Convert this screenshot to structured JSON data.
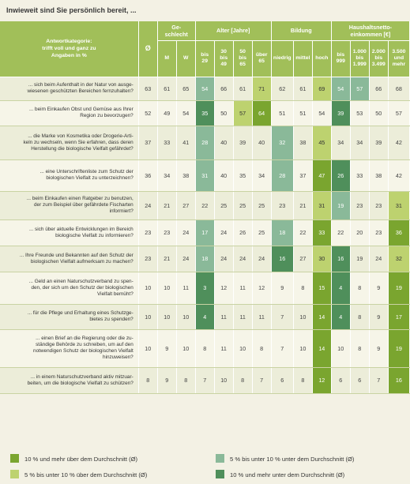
{
  "title": "Inwieweit sind Sie persönlich bereit, ...",
  "header": {
    "antwortkategorie": "Antwortkategorie:\ntrifft voll und ganz zu\nAngaben in %",
    "avg": "Ø",
    "geschlecht": "Ge-\nschlecht",
    "alter": "Alter [Jahre]",
    "bildung": "Bildung",
    "einkommen": "Haushaltsnetto-\neinkommen [€]",
    "cols": [
      "M",
      "W",
      "bis\n29",
      "30\nbis\n49",
      "50\nbis\n65",
      "über\n65",
      "niedrig",
      "mittel",
      "hoch",
      "bis\n999",
      "1.000\nbis\n1.999",
      "2.000\nbis\n3.499",
      "3.500\nund\nmehr"
    ]
  },
  "rows": [
    {
      "q": "... sich beim Aufenthalt in der Natur von ausge-\nwiesenen geschützten Bereichen fernzuhalten?",
      "v": [
        "63",
        "61",
        "65",
        "54",
        "66",
        "61",
        "71",
        "62",
        "61",
        "69",
        "54",
        "57",
        "66",
        "68"
      ],
      "s": [
        "",
        "",
        "",
        "s3",
        "",
        "",
        "s2",
        "",
        "",
        "s2",
        "s3",
        "s3",
        "",
        ""
      ]
    },
    {
      "q": "... beim Einkaufen Obst und Gemüse aus Ihrer\nRegion zu bevorzugen?",
      "v": [
        "52",
        "49",
        "54",
        "35",
        "50",
        "57",
        "64",
        "51",
        "51",
        "54",
        "39",
        "53",
        "50",
        "57"
      ],
      "s": [
        "",
        "",
        "",
        "s4",
        "",
        "s2",
        "s1",
        "",
        "",
        "",
        "s4",
        "",
        "",
        ""
      ]
    },
    {
      "q": "... die Marke von Kosmetika oder Drogerie-Arti-\nkeln zu wechseln, wenn Sie erfahren, dass deren\nHerstellung die biologische Vielfalt gefährdet?",
      "v": [
        "37",
        "33",
        "41",
        "28",
        "40",
        "39",
        "40",
        "32",
        "38",
        "45",
        "34",
        "34",
        "39",
        "42"
      ],
      "s": [
        "",
        "",
        "",
        "s3",
        "",
        "",
        "",
        "s3",
        "",
        "s2",
        "",
        "",
        "",
        ""
      ]
    },
    {
      "q": "... eine Unterschriftenliste zum Schutz der\nbiologischen Vielfalt zu unterzeichnen?",
      "v": [
        "36",
        "34",
        "38",
        "31",
        "40",
        "35",
        "34",
        "28",
        "37",
        "47",
        "26",
        "33",
        "38",
        "42"
      ],
      "s": [
        "",
        "",
        "",
        "s3",
        "",
        "",
        "",
        "s3",
        "",
        "s1",
        "s4",
        "",
        "",
        ""
      ]
    },
    {
      "q": "... beim Einkaufen einen Ratgeber zu benutzen,\nder zum Beispiel über gefährdete Fischarten\ninformiert?",
      "v": [
        "24",
        "21",
        "27",
        "22",
        "25",
        "25",
        "25",
        "23",
        "21",
        "31",
        "19",
        "23",
        "23",
        "31"
      ],
      "s": [
        "",
        "",
        "",
        "",
        "",
        "",
        "",
        "",
        "",
        "s2",
        "s3",
        "",
        "",
        "s2"
      ]
    },
    {
      "q": "... sich über aktuelle Entwicklungen im Bereich\nbiologische Vielfalt zu informieren?",
      "v": [
        "23",
        "23",
        "24",
        "17",
        "24",
        "26",
        "25",
        "18",
        "22",
        "33",
        "22",
        "20",
        "23",
        "36"
      ],
      "s": [
        "",
        "",
        "",
        "s3",
        "",
        "",
        "",
        "s3",
        "",
        "s1",
        "",
        "",
        "",
        "s1"
      ]
    },
    {
      "q": "... Ihre Freunde und Bekannten auf den Schutz der\nbiologischen Vielfalt aufmerksam zu machen?",
      "v": [
        "23",
        "21",
        "24",
        "18",
        "24",
        "24",
        "24",
        "16",
        "27",
        "30",
        "16",
        "19",
        "24",
        "32"
      ],
      "s": [
        "",
        "",
        "",
        "s3",
        "",
        "",
        "",
        "s4",
        "",
        "s2",
        "s4",
        "",
        "",
        "s2"
      ]
    },
    {
      "q": "... Geld an einen Naturschutzverband zu spen-\nden, der sich um den Schutz der biologischen\nVielfalt bemüht?",
      "v": [
        "10",
        "10",
        "11",
        "3",
        "12",
        "11",
        "12",
        "9",
        "8",
        "15",
        "4",
        "8",
        "9",
        "19"
      ],
      "s": [
        "",
        "",
        "",
        "s4",
        "",
        "",
        "",
        "",
        "",
        "s1",
        "s4",
        "",
        "",
        "s1"
      ]
    },
    {
      "q": "... für die Pflege und Erhaltung eines Schutzge-\nbietes zu spenden?",
      "v": [
        "10",
        "10",
        "10",
        "4",
        "11",
        "11",
        "11",
        "7",
        "10",
        "14",
        "4",
        "8",
        "9",
        "17"
      ],
      "s": [
        "",
        "",
        "",
        "s4",
        "",
        "",
        "",
        "",
        "",
        "s1",
        "s4",
        "",
        "",
        "s1"
      ]
    },
    {
      "q": "... einen Brief an die Regierung oder die zu-\nständige Behörde zu schreiben, um auf den\nnotwendigen Schutz der biologischen Vielfalt\nhinzuweisen?",
      "v": [
        "10",
        "9",
        "10",
        "8",
        "11",
        "10",
        "8",
        "7",
        "10",
        "14",
        "10",
        "8",
        "9",
        "19"
      ],
      "s": [
        "",
        "",
        "",
        "",
        "",
        "",
        "",
        "",
        "",
        "s1",
        "",
        "",
        "",
        "s1"
      ]
    },
    {
      "q": "... in einem Naturschutzverband aktiv mitzuar-\nbeiten, um die biologische Vielfalt zu schützen?",
      "v": [
        "8",
        "9",
        "8",
        "7",
        "10",
        "8",
        "7",
        "6",
        "8",
        "12",
        "6",
        "6",
        "7",
        "16"
      ],
      "s": [
        "",
        "",
        "",
        "",
        "",
        "",
        "",
        "",
        "",
        "s1",
        "",
        "",
        "",
        "s1"
      ]
    }
  ],
  "legend": [
    {
      "label": "10 % und mehr über dem Durchschnitt (Ø)",
      "color": "#7aa52f"
    },
    {
      "label": "5 % bis unter 10 % über dem Durchschnitt (Ø)",
      "color": "#bdd26f"
    },
    {
      "label": "5 % bis unter 10 % unter dem Durchschnitt (Ø)",
      "color": "#8ab999"
    },
    {
      "label": "10 % und mehr unter dem Durchschnitt (Ø)",
      "color": "#4f8f5b"
    }
  ]
}
